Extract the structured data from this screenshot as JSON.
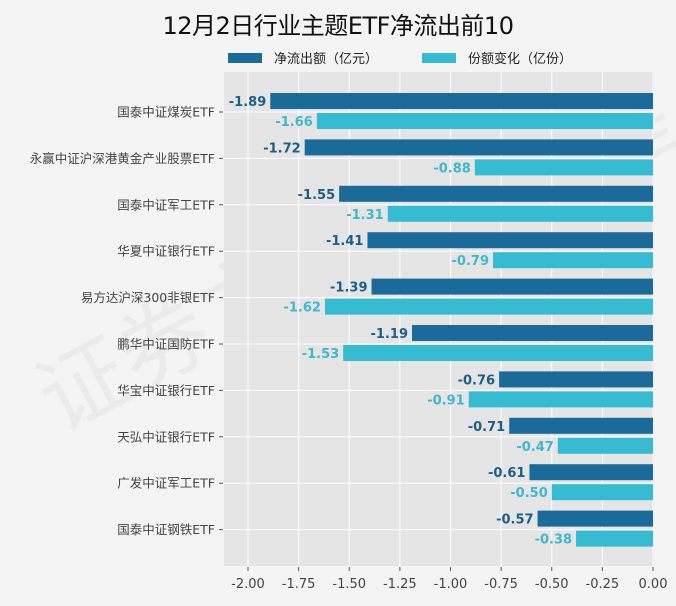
{
  "chart_data": {
    "type": "bar",
    "orientation": "horizontal",
    "title": "12月2日行业主题ETF净流出前10",
    "xlabel": "",
    "ylabel": "",
    "xlim": [
      -2.1,
      0.0
    ],
    "xticks": [
      -2.0,
      -1.75,
      -1.5,
      -1.25,
      -1.0,
      -0.75,
      -0.5,
      -0.25,
      0.0
    ],
    "xtick_labels": [
      "-2.00",
      "-1.75",
      "-1.50",
      "-1.25",
      "-1.00",
      "-0.75",
      "-0.50",
      "-0.25",
      "0.00"
    ],
    "grid": true,
    "legend_position": "top",
    "categories": [
      "国泰中证煤炭ETF",
      "永赢中证沪深港黄金产业股票ETF",
      "国泰中证军工ETF",
      "华夏中证银行ETF",
      "易方达沪深300非银ETF",
      "鹏华中证国防ETF",
      "华宝中证银行ETF",
      "天弘中证银行ETF",
      "广发中证军工ETF",
      "国泰中证钢铁ETF"
    ],
    "series": [
      {
        "name": "净流出额（亿元）",
        "color": "#1a6a9a",
        "values": [
          -1.89,
          -1.72,
          -1.55,
          -1.41,
          -1.39,
          -1.19,
          -0.76,
          -0.71,
          -0.61,
          -0.57
        ],
        "labels": [
          "-1.89",
          "-1.72",
          "-1.55",
          "-1.41",
          "-1.39",
          "-1.19",
          "-0.76",
          "-0.71",
          "-0.61",
          "-0.57"
        ]
      },
      {
        "name": "份额变化（亿份）",
        "color": "#36bcd2",
        "values": [
          -1.66,
          -0.88,
          -1.31,
          -0.79,
          -1.62,
          -1.53,
          -0.91,
          -0.47,
          -0.5,
          -0.38
        ],
        "labels": [
          "-1.66",
          "-0.88",
          "-1.31",
          "-0.79",
          "-1.62",
          "-1.53",
          "-0.91",
          "-0.47",
          "-0.50",
          "-0.38"
        ]
      }
    ]
  },
  "watermark": "证券之星"
}
